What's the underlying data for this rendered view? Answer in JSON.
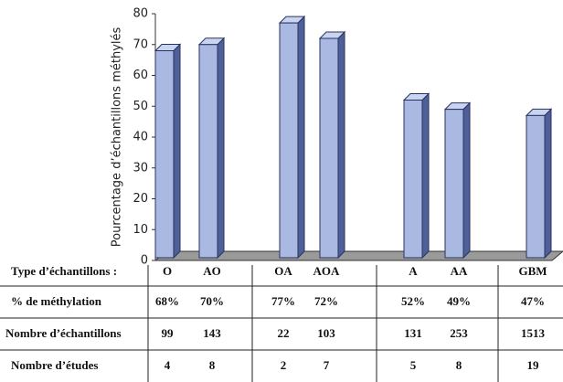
{
  "chart_data": {
    "type": "bar",
    "y_label": "Pourcentage d’échantillons méthylés",
    "category_label": "Type  d’échantillons :",
    "categories": [
      "O",
      "AO",
      "OA",
      "AOA",
      "A",
      "AA",
      "GBM"
    ],
    "value_row_label": "% de méthylation",
    "values": [
      68,
      70,
      77,
      72,
      52,
      49,
      47
    ],
    "value_labels": [
      "68%",
      "70%",
      "77%",
      "72%",
      "52%",
      "49%",
      "47%"
    ],
    "table_rows": [
      {
        "label": "Nombre d’échantillons",
        "values": [
          99,
          143,
          22,
          103,
          131,
          253,
          1513
        ]
      },
      {
        "label": "Nombre d’études",
        "values": [
          4,
          8,
          2,
          7,
          5,
          8,
          19
        ]
      }
    ],
    "color": "#a9b9e2",
    "ylim": [
      0,
      80
    ],
    "yticks": [
      0,
      10,
      20,
      30,
      40,
      50,
      60,
      70,
      80
    ]
  }
}
